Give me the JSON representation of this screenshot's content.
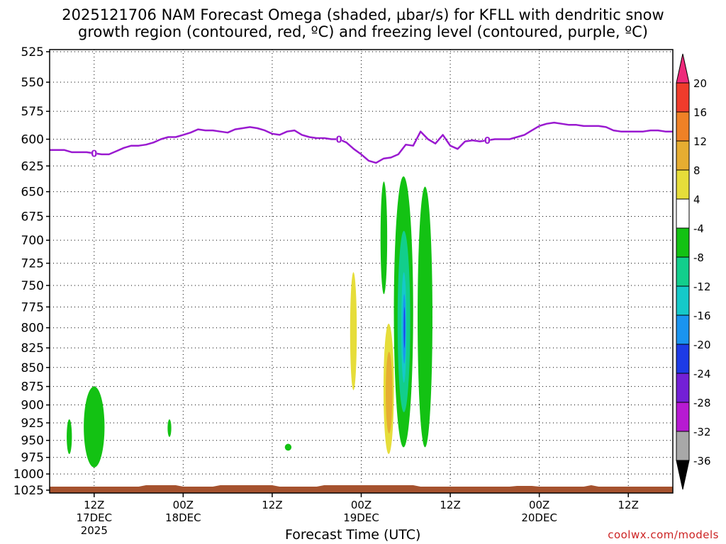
{
  "title_line1": "2025121706 NAM Forecast Omega (shaded, µbar/s) for KFLL with dendritic snow",
  "title_line2": "growth region (contoured, red, ºC) and freezing level (contoured, purple, ºC)",
  "credit": "coolwx.com/models",
  "chart_data": {
    "type": "heatmap",
    "title": "2025121706 NAM Forecast Omega (shaded, µbar/s) for KFLL with dendritic snow growth region (contoured, red, ºC) and freezing level (contoured, purple, ºC)",
    "xlabel": "Forecast Time (UTC)",
    "ylabel": "",
    "x_unit": "forecast hour from 2025-12-17 06Z",
    "xlim": [
      0,
      84
    ],
    "y_ticks": [
      525,
      550,
      575,
      600,
      625,
      650,
      675,
      700,
      725,
      750,
      775,
      800,
      825,
      850,
      875,
      900,
      925,
      950,
      975,
      1000,
      1025
    ],
    "y_tick_labels": [
      "525",
      "550",
      "575",
      "600",
      "625",
      "650",
      "675",
      "700",
      "725",
      "750",
      "775",
      "800",
      "825",
      "850",
      "875",
      "900",
      "925",
      "950",
      "975",
      "1000",
      "1025"
    ],
    "ylim": [
      1025,
      525
    ],
    "x_ticks": [
      {
        "x": 6,
        "label": "12Z",
        "sub1": "17DEC",
        "sub2": "2025"
      },
      {
        "x": 18,
        "label": "00Z",
        "sub1": "18DEC",
        "sub2": ""
      },
      {
        "x": 30,
        "label": "12Z",
        "sub1": "",
        "sub2": ""
      },
      {
        "x": 42,
        "label": "00Z",
        "sub1": "19DEC",
        "sub2": ""
      },
      {
        "x": 54,
        "label": "12Z",
        "sub1": "",
        "sub2": ""
      },
      {
        "x": 66,
        "label": "00Z",
        "sub1": "20DEC",
        "sub2": ""
      },
      {
        "x": 78,
        "label": "12Z",
        "sub1": "",
        "sub2": ""
      }
    ],
    "grid": true,
    "colorbar": {
      "labels": [
        "20",
        "16",
        "12",
        "8",
        "4",
        "-4",
        "-8",
        "-12",
        "-16",
        "-20",
        "-24",
        "-28",
        "-32",
        "-36"
      ],
      "colors": [
        "#ee2a7b",
        "#f03c2c",
        "#ef8126",
        "#e6ad31",
        "#e6dd3a",
        "#ffffff",
        "#13c213",
        "#12ce8c",
        "#15c9c9",
        "#1a94f0",
        "#1d3be6",
        "#7320d6",
        "#b71ad2",
        "#a8a8a8",
        "#000000"
      ]
    },
    "freezing_level": {
      "color": "#9a1ad0",
      "label": "0",
      "x": [
        0,
        1,
        2,
        3,
        4,
        5,
        6,
        7,
        8,
        9,
        10,
        11,
        12,
        13,
        14,
        15,
        16,
        17,
        18,
        19,
        20,
        21,
        22,
        23,
        24,
        25,
        26,
        27,
        28,
        29,
        30,
        31,
        32,
        33,
        34,
        35,
        36,
        37,
        38,
        39,
        40,
        41,
        42,
        43,
        44,
        45,
        46,
        47,
        48,
        49,
        50,
        51,
        52,
        53,
        54,
        55,
        56,
        57,
        58,
        59,
        60,
        61,
        62,
        63,
        64,
        65,
        66,
        67,
        68,
        69,
        70,
        71,
        72,
        73,
        74,
        75,
        76,
        77,
        78,
        79,
        80,
        81,
        82,
        83,
        84
      ],
      "y": [
        610,
        610,
        610,
        612,
        612,
        612,
        613,
        614,
        614,
        611,
        608,
        606,
        606,
        605,
        603,
        600,
        598,
        598,
        596,
        594,
        591,
        592,
        592,
        593,
        594,
        591,
        590,
        589,
        590,
        592,
        595,
        596,
        593,
        592,
        596,
        598,
        599,
        599,
        600,
        600,
        603,
        609,
        614,
        620,
        622,
        618,
        617,
        614,
        605,
        606,
        593,
        600,
        604,
        596,
        606,
        609,
        602,
        601,
        602,
        601,
        600,
        600,
        600,
        598,
        596,
        592,
        588,
        586,
        585,
        586,
        587,
        587,
        588,
        588,
        588,
        589,
        592,
        593,
        593,
        593,
        593,
        592,
        592,
        593,
        593
      ],
      "label_x": [
        6,
        39,
        59
      ]
    },
    "omega_regions": [
      {
        "value_range": "-4 to -8",
        "color": "#13c213",
        "x": [
          2.3,
          3.0
        ],
        "y": [
          920,
          970
        ]
      },
      {
        "value_range": "-4 to -8",
        "color": "#13c213",
        "x": [
          4.6,
          7.4
        ],
        "y": [
          875,
          990
        ]
      },
      {
        "value_range": "-4 to -8",
        "color": "#13c213",
        "x": [
          15.9,
          16.4
        ],
        "y": [
          920,
          945
        ]
      },
      {
        "value_range": "-4 to -8",
        "color": "#13c213",
        "x": [
          31.7,
          32.6
        ],
        "y": [
          955,
          965
        ]
      },
      {
        "value_range": "4 to 8",
        "color": "#e6dd3a",
        "x": [
          40.5,
          41.4
        ],
        "y": [
          735,
          880
        ]
      },
      {
        "value_range": "4 to 8",
        "color": "#e6dd3a",
        "x": [
          45.0,
          46.4
        ],
        "y": [
          795,
          970
        ]
      },
      {
        "value_range": "8 to 12",
        "color": "#e6ad31",
        "x": [
          45.3,
          46.2
        ],
        "y": [
          830,
          940
        ]
      },
      {
        "value_range": "-4 to -8",
        "color": "#13c213",
        "x": [
          44.6,
          45.5
        ],
        "y": [
          640,
          760
        ]
      },
      {
        "value_range": "-4 to -8",
        "color": "#13c213",
        "x": [
          46.4,
          49.0
        ],
        "y": [
          635,
          960
        ]
      },
      {
        "value_range": "-8 to -12",
        "color": "#12ce8c",
        "x": [
          46.9,
          48.6
        ],
        "y": [
          690,
          910
        ]
      },
      {
        "value_range": "-12 to -16",
        "color": "#15c9c9",
        "x": [
          47.4,
          48.1
        ],
        "y": [
          735,
          870
        ]
      },
      {
        "value_range": "-16 to -20",
        "color": "#1a94f0",
        "x": [
          47.6,
          48.0
        ],
        "y": [
          760,
          845
        ]
      },
      {
        "value_range": "-20 to -24",
        "color": "#1d3be6",
        "x": [
          47.75,
          47.9
        ],
        "y": [
          775,
          825
        ]
      },
      {
        "value_range": "-4 to -8",
        "color": "#13c213",
        "x": [
          49.6,
          51.6
        ],
        "y": [
          645,
          960
        ]
      }
    ],
    "surface": {
      "color": "#a5522e"
    }
  }
}
